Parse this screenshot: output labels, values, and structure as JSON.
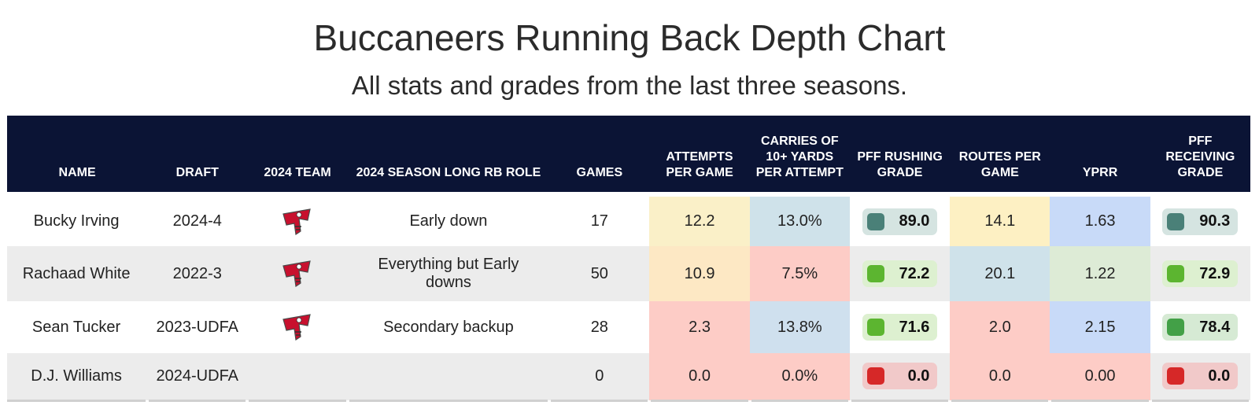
{
  "title": "Buccaneers Running Back Depth Chart",
  "subtitle": "All stats and grades from the last three seasons.",
  "columns": [
    "NAME",
    "DRAFT",
    "2024 TEAM",
    "2024 SEASON LONG RB ROLE",
    "GAMES",
    "ATTEMPTS PER GAME",
    "CARRIES OF 10+ YARDS PER ATTEMPT",
    "PFF RUSHING GRADE",
    "ROUTES PER GAME",
    "YPRR",
    "PFF RECEIVING GRADE"
  ],
  "team_logo_icon": "buccaneers-flag-icon",
  "colors": {
    "header_bg": "#0b1435",
    "logo_red": "#c8102e",
    "grade_dark_green": "#4a8078",
    "grade_green": "#5cb530",
    "grade_mid_green": "#43a047",
    "grade_red": "#d62828"
  },
  "rows": [
    {
      "name": "Bucky Irving",
      "draft": "2024-4",
      "has_logo": true,
      "role": "Early down",
      "games": "17",
      "attempts_per_game": "12.2",
      "attempts_bg": "#faf0c8",
      "carries_10": "13.0%",
      "carries_bg": "#cfe2ea",
      "rushing_grade": "89.0",
      "rushing_sq": "#4a8078",
      "rushing_bg": "#d5e4e1",
      "routes_per_game": "14.1",
      "routes_bg": "#fdf0c3",
      "yprr": "1.63",
      "yprr_bg": "#c8daf8",
      "receiving_grade": "90.3",
      "receiving_sq": "#4a8078",
      "receiving_bg": "#d5e4e1"
    },
    {
      "name": "Rachaad White",
      "draft": "2022-3",
      "has_logo": true,
      "role": "Everything but Early downs",
      "games": "50",
      "attempts_per_game": "10.9",
      "attempts_bg": "#fde8c4",
      "carries_10": "7.5%",
      "carries_bg": "#fdccc6",
      "rushing_grade": "72.2",
      "rushing_sq": "#5cb530",
      "rushing_bg": "#ddf0d0",
      "routes_per_game": "20.1",
      "routes_bg": "#cfe2ea",
      "yprr": "1.22",
      "yprr_bg": "#ddebd6",
      "receiving_grade": "72.9",
      "receiving_sq": "#5cb530",
      "receiving_bg": "#ddf0d0"
    },
    {
      "name": "Sean Tucker",
      "draft": "2023-UDFA",
      "has_logo": true,
      "role": "Secondary backup",
      "games": "28",
      "attempts_per_game": "2.3",
      "attempts_bg": "#fdccc6",
      "carries_10": "13.8%",
      "carries_bg": "#cfe0ee",
      "rushing_grade": "71.6",
      "rushing_sq": "#5cb530",
      "rushing_bg": "#ddf0d0",
      "routes_per_game": "2.0",
      "routes_bg": "#fdccc6",
      "yprr": "2.15",
      "yprr_bg": "#c8daf8",
      "receiving_grade": "78.4",
      "receiving_sq": "#43a047",
      "receiving_bg": "#d6ead4"
    },
    {
      "name": "D.J. Williams",
      "draft": "2024-UDFA",
      "has_logo": false,
      "role": "",
      "games": "0",
      "attempts_per_game": "0.0",
      "attempts_bg": "#fdccc6",
      "carries_10": "0.0%",
      "carries_bg": "#fdccc6",
      "rushing_grade": "0.0",
      "rushing_sq": "#d62828",
      "rushing_bg": "#f1c9c9",
      "routes_per_game": "0.0",
      "routes_bg": "#fdccc6",
      "yprr": "0.00",
      "yprr_bg": "#fdccc6",
      "receiving_grade": "0.0",
      "receiving_sq": "#d62828",
      "receiving_bg": "#f1c9c9"
    }
  ]
}
